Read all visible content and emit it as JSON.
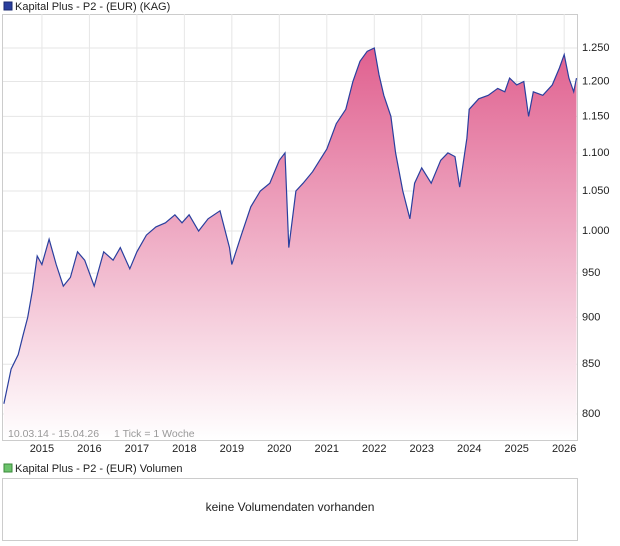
{
  "chart_data": {
    "type": "line",
    "series": [
      {
        "name": "Kapital Plus - P2 - (EUR) (KAG)",
        "color": "#2a3f9e",
        "x": [
          2014.2,
          2014.35,
          2014.5,
          2014.6,
          2014.7,
          2014.8,
          2014.9,
          2015.0,
          2015.15,
          2015.3,
          2015.45,
          2015.6,
          2015.75,
          2015.9,
          2016.1,
          2016.3,
          2016.5,
          2016.65,
          2016.85,
          2017.0,
          2017.2,
          2017.4,
          2017.6,
          2017.8,
          2017.95,
          2018.1,
          2018.3,
          2018.5,
          2018.75,
          2018.95,
          2019.0,
          2019.2,
          2019.4,
          2019.6,
          2019.8,
          2020.0,
          2020.12,
          2020.2,
          2020.35,
          2020.5,
          2020.7,
          2020.85,
          2021.0,
          2021.2,
          2021.4,
          2021.55,
          2021.7,
          2021.85,
          2022.0,
          2022.1,
          2022.2,
          2022.35,
          2022.45,
          2022.6,
          2022.75,
          2022.85,
          2023.0,
          2023.2,
          2023.4,
          2023.55,
          2023.7,
          2023.8,
          2023.95,
          2024.0,
          2024.2,
          2024.4,
          2024.6,
          2024.75,
          2024.85,
          2025.0,
          2025.15,
          2025.25,
          2025.35,
          2025.55,
          2025.75,
          2025.9,
          2026.0,
          2026.1,
          2026.2,
          2026.26
        ],
        "values": [
          810,
          845,
          860,
          880,
          900,
          930,
          970,
          960,
          990,
          960,
          935,
          945,
          975,
          965,
          935,
          975,
          965,
          980,
          955,
          975,
          995,
          1005,
          1010,
          1020,
          1010,
          1020,
          1000,
          1015,
          1025,
          980,
          960,
          995,
          1030,
          1050,
          1060,
          1090,
          1100,
          980,
          1050,
          1060,
          1075,
          1090,
          1105,
          1140,
          1160,
          1200,
          1230,
          1245,
          1250,
          1210,
          1180,
          1150,
          1100,
          1050,
          1015,
          1060,
          1080,
          1060,
          1090,
          1100,
          1095,
          1055,
          1120,
          1160,
          1175,
          1180,
          1190,
          1185,
          1205,
          1195,
          1200,
          1150,
          1185,
          1180,
          1195,
          1220,
          1240,
          1205,
          1185,
          1205
        ]
      }
    ],
    "xlim": [
      2014.18,
      2026.27
    ],
    "xticks": [
      2015,
      2016,
      2017,
      2018,
      2019,
      2020,
      2021,
      2022,
      2023,
      2024,
      2025,
      2026
    ],
    "ylim": [
      775,
      1303
    ],
    "yticks": [
      800,
      850,
      900,
      950,
      {
        "value": 1000,
        "label": "1.000"
      },
      {
        "value": 1050,
        "label": "1.050"
      },
      {
        "value": 1100,
        "label": "1.100"
      },
      {
        "value": 1150,
        "label": "1.150"
      },
      {
        "value": 1200,
        "label": "1.200"
      },
      {
        "value": 1250,
        "label": "1.250"
      }
    ],
    "log_scale": true,
    "grid": true,
    "date_range": "10.03.14 - 15.04.26",
    "tick_note": "1 Tick = 1 Woche"
  },
  "volume_panel": {
    "title": "Kapital Plus - P2 - (EUR) Volumen",
    "message": "keine Volumendaten vorhanden"
  }
}
